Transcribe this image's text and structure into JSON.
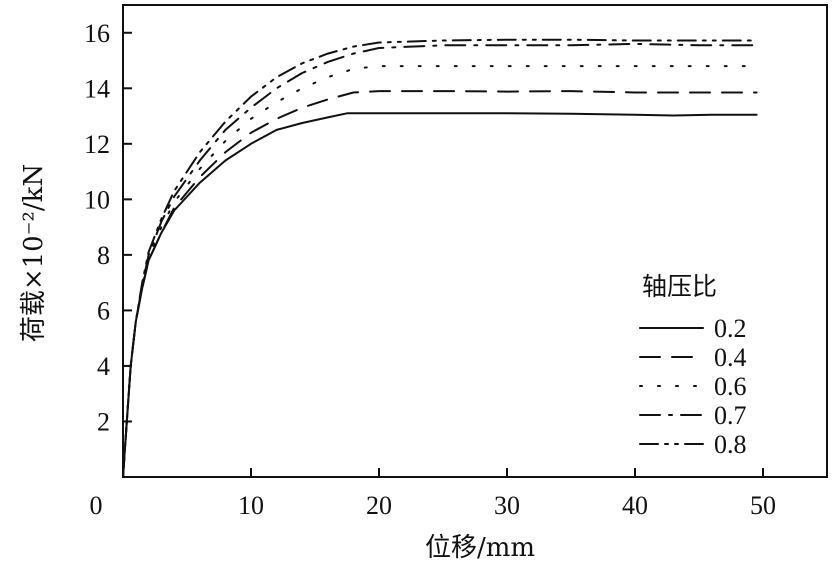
{
  "chart_data": {
    "type": "line",
    "xlabel": "位移/mm",
    "ylabel": "荷载×10⁻²/kN",
    "xlim": [
      0,
      55
    ],
    "ylim": [
      0,
      17
    ],
    "xticks": [
      0,
      10,
      20,
      30,
      40,
      50
    ],
    "yticks": [
      2,
      4,
      6,
      8,
      10,
      12,
      14,
      16
    ],
    "grid": false,
    "legend": {
      "title": "轴压比",
      "position": "right"
    },
    "series": [
      {
        "name": "0.2",
        "style": "solid",
        "x": [
          0,
          0.3,
          0.6,
          1,
          1.5,
          2,
          3,
          4,
          6,
          8,
          10,
          12,
          14,
          16,
          17.5,
          20,
          25,
          30,
          35,
          40,
          43,
          46,
          49.5
        ],
        "y": [
          0,
          2,
          4,
          5.6,
          6.8,
          7.8,
          8.8,
          9.6,
          10.6,
          11.4,
          12.0,
          12.5,
          12.75,
          12.95,
          13.1,
          13.1,
          13.1,
          13.1,
          13.08,
          13.05,
          13.02,
          13.05,
          13.05
        ]
      },
      {
        "name": "0.4",
        "style": "dash",
        "x": [
          0,
          0.3,
          0.6,
          1,
          1.5,
          2,
          3,
          4,
          6,
          8,
          10,
          12,
          14,
          16,
          18,
          20,
          25,
          30,
          35,
          40,
          45,
          49.5
        ],
        "y": [
          0,
          2,
          4,
          5.6,
          6.8,
          7.8,
          8.8,
          9.7,
          10.8,
          11.7,
          12.4,
          12.9,
          13.3,
          13.6,
          13.85,
          13.9,
          13.9,
          13.88,
          13.9,
          13.85,
          13.85,
          13.85
        ]
      },
      {
        "name": "0.6",
        "style": "dot",
        "x": [
          0,
          0.3,
          0.6,
          1,
          1.5,
          2,
          3,
          4,
          6,
          8,
          10,
          12,
          14,
          16,
          18,
          20,
          25,
          30,
          35,
          40,
          45,
          49.5
        ],
        "y": [
          0,
          2,
          4,
          5.6,
          6.9,
          7.9,
          9.0,
          9.9,
          11.1,
          12.1,
          12.9,
          13.5,
          14.0,
          14.4,
          14.7,
          14.8,
          14.8,
          14.8,
          14.8,
          14.8,
          14.8,
          14.8
        ]
      },
      {
        "name": "0.7",
        "style": "dashdot",
        "x": [
          0,
          0.3,
          0.6,
          1,
          1.5,
          2,
          3,
          4,
          6,
          8,
          10,
          12,
          14,
          16,
          18,
          20,
          25,
          30,
          35,
          40,
          45,
          49.5
        ],
        "y": [
          0,
          2,
          4,
          5.6,
          6.9,
          8.0,
          9.2,
          10.1,
          11.4,
          12.5,
          13.3,
          14.0,
          14.55,
          14.95,
          15.25,
          15.45,
          15.55,
          15.55,
          15.55,
          15.6,
          15.55,
          15.55
        ]
      },
      {
        "name": "0.8",
        "style": "dashdotdot",
        "x": [
          0,
          0.3,
          0.6,
          1,
          1.5,
          2,
          3,
          4,
          6,
          8,
          10,
          12,
          14,
          16,
          18,
          20,
          25,
          30,
          35,
          40,
          45,
          49.5
        ],
        "y": [
          0,
          2,
          4,
          5.6,
          7.0,
          8.1,
          9.3,
          10.3,
          11.7,
          12.8,
          13.7,
          14.4,
          14.9,
          15.25,
          15.5,
          15.65,
          15.72,
          15.75,
          15.75,
          15.72,
          15.72,
          15.72
        ]
      }
    ]
  }
}
